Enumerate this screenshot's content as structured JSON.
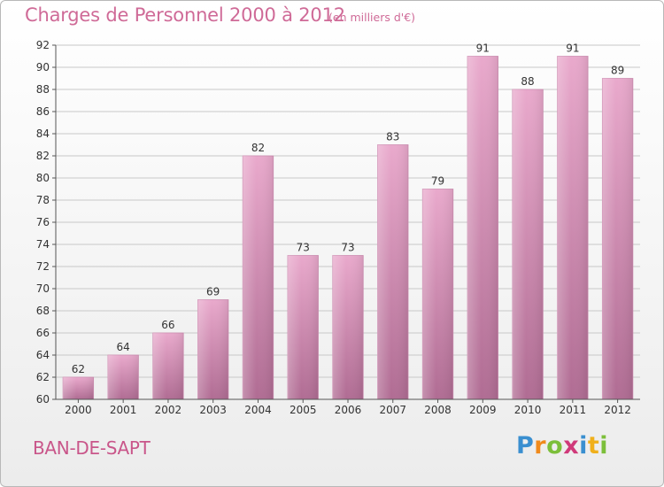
{
  "header": {
    "title": "Charges de Personnel 2000 à 2012",
    "unit_note": "(en milliers d'€)"
  },
  "footer": {
    "place": "BAN-DE-SAPT",
    "logo_text": "Proxiti",
    "logo_letters": [
      {
        "ch": "P",
        "color": "#3a8fd0"
      },
      {
        "ch": "r",
        "color": "#f08a1c"
      },
      {
        "ch": "o",
        "color": "#7cbf3a"
      },
      {
        "ch": "x",
        "color": "#d03a7a"
      },
      {
        "ch": "i",
        "color": "#3a8fd0"
      },
      {
        "ch": "t",
        "color": "#f0b01c"
      },
      {
        "ch": "i",
        "color": "#7cbf3a"
      }
    ]
  },
  "colors": {
    "bar_top": "#e9a9cc",
    "bar_bottom": "#b06c93",
    "grid": "#c8c8c8",
    "title": "#cf6a97"
  },
  "chart_data": {
    "type": "bar",
    "title": "Charges de Personnel 2000 à 2012",
    "subtitle": "(en milliers d'€)",
    "categories": [
      "2000",
      "2001",
      "2002",
      "2003",
      "2004",
      "2005",
      "2006",
      "2007",
      "2008",
      "2009",
      "2010",
      "2011",
      "2012"
    ],
    "values": [
      62,
      64,
      66,
      69,
      82,
      73,
      73,
      83,
      79,
      91,
      88,
      91,
      89
    ],
    "ylim": [
      60,
      92
    ],
    "yticks": [
      60,
      62,
      64,
      66,
      68,
      70,
      72,
      74,
      76,
      78,
      80,
      82,
      84,
      86,
      88,
      90,
      92
    ],
    "grid": true,
    "legend": "none",
    "xlabel": "",
    "ylabel": ""
  }
}
